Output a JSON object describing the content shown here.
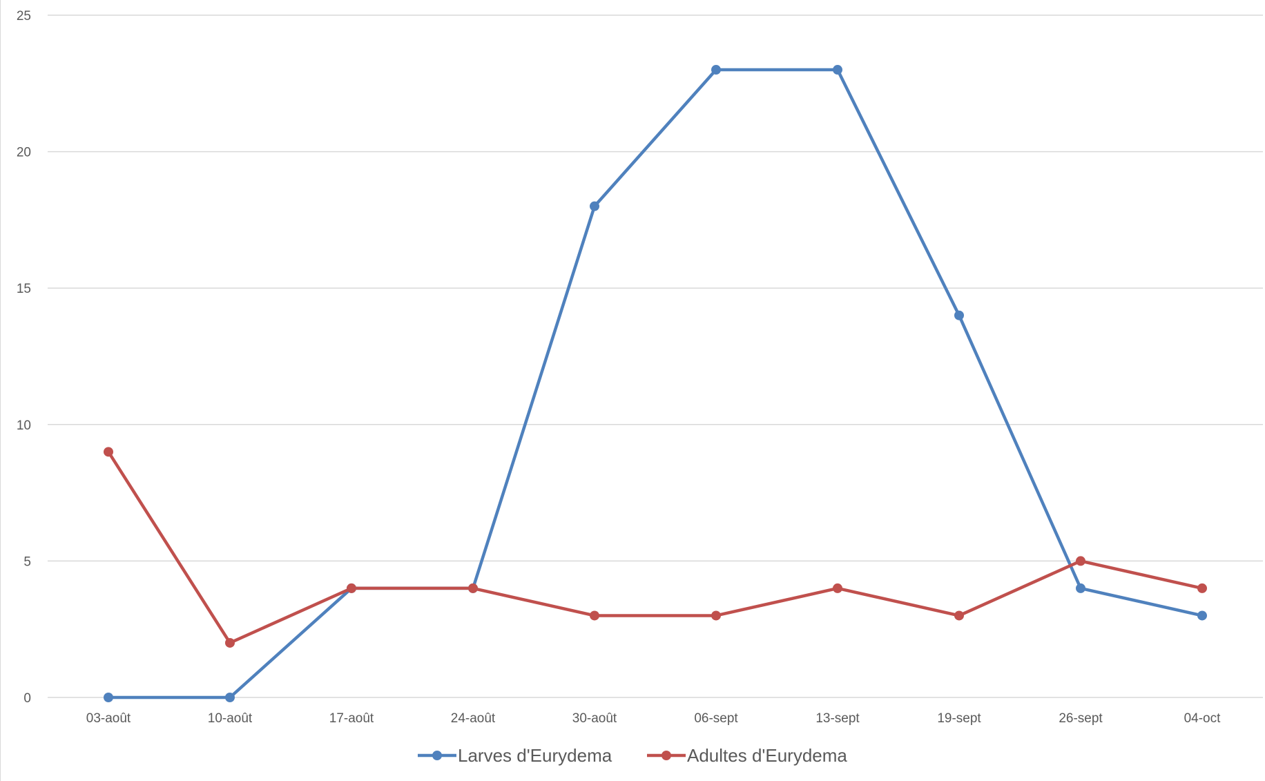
{
  "chart_data": {
    "type": "line",
    "title": "",
    "xlabel": "",
    "ylabel": "",
    "categories": [
      "03-août",
      "10-août",
      "17-août",
      "24-août",
      "30-août",
      "06-sept",
      "13-sept",
      "19-sept",
      "26-sept",
      "04-oct"
    ],
    "ylim": [
      0,
      25
    ],
    "yticks": [
      0,
      5,
      10,
      15,
      20,
      25
    ],
    "grid": true,
    "legend_position": "bottom",
    "series": [
      {
        "name": "Larves d'Eurydema",
        "color": "#4F81BD",
        "values": [
          0,
          0,
          4,
          4,
          18,
          23,
          23,
          14,
          4,
          3
        ]
      },
      {
        "name": "Adultes d'Eurydema",
        "color": "#C0504D",
        "values": [
          9,
          2,
          4,
          4,
          3,
          3,
          4,
          3,
          5,
          4
        ]
      }
    ]
  }
}
